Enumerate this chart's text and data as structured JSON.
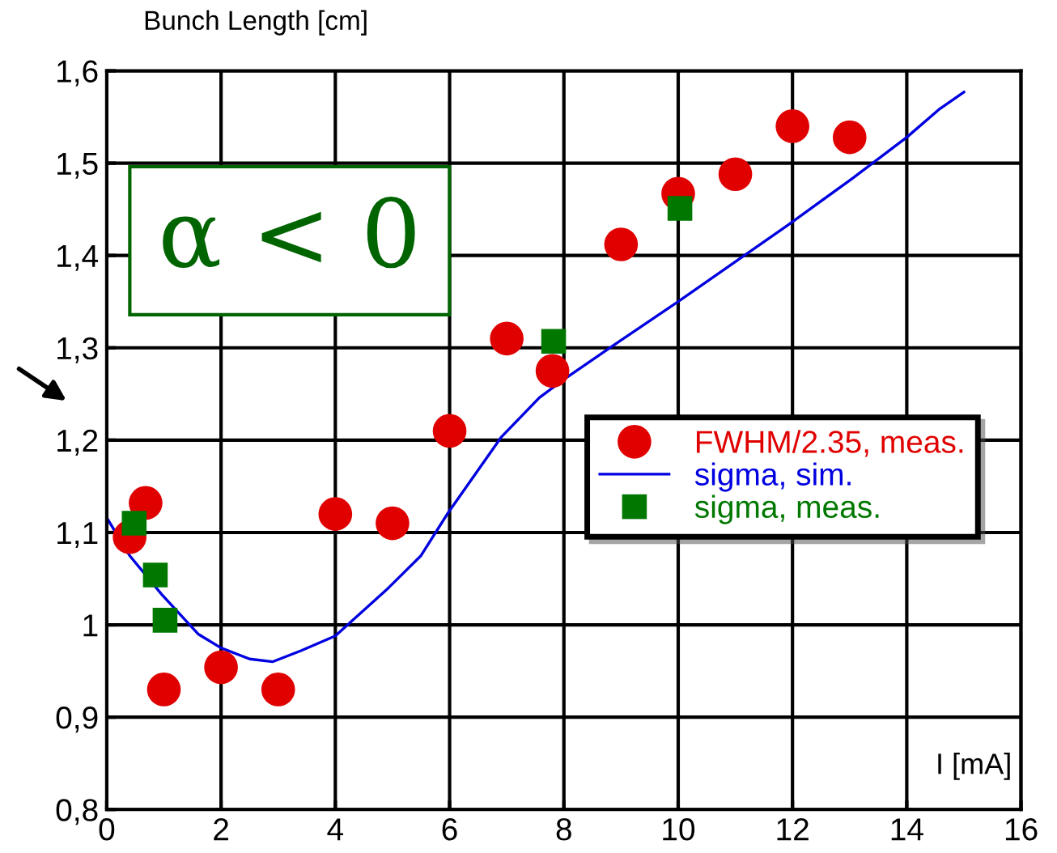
{
  "chart_data": {
    "type": "scatter",
    "ylabel": "Bunch Length [cm]",
    "xlabel": "I [mA]",
    "annotations": [
      "α < 0"
    ],
    "xlim": [
      0,
      16
    ],
    "xticks": [
      0,
      2,
      4,
      6,
      8,
      10,
      12,
      14,
      16
    ],
    "ylim": [
      0.8,
      1.6
    ],
    "yticks": [
      {
        "value": 0.8,
        "label": "0,8"
      },
      {
        "value": 0.9,
        "label": "0,9"
      },
      {
        "value": 1.0,
        "label": "1"
      },
      {
        "value": 1.1,
        "label": "1,1"
      },
      {
        "value": 1.2,
        "label": "1,2"
      },
      {
        "value": 1.3,
        "label": "1,3"
      },
      {
        "value": 1.4,
        "label": "1,4"
      },
      {
        "value": 1.5,
        "label": "1,5"
      },
      {
        "value": 1.6,
        "label": "1,6"
      }
    ],
    "grid": true,
    "legend": "right",
    "series": [
      {
        "name": "FWHM/2.35, meas.",
        "type": "scatter",
        "marker": "circle",
        "color": "#e00000",
        "x": [
          0.4,
          0.68,
          1.0,
          2.0,
          3.0,
          4.0,
          5.0,
          6.0,
          7.0,
          7.8,
          9.0,
          10.0,
          11.0,
          12.0,
          13.0
        ],
        "values": [
          1.095,
          1.132,
          0.93,
          0.954,
          0.93,
          1.12,
          1.11,
          1.21,
          1.31,
          1.275,
          1.412,
          1.467,
          1.488,
          1.54,
          1.528
        ]
      },
      {
        "name": "sigma, sim.",
        "type": "line",
        "marker": "none",
        "line_style": "solid",
        "color": "#0000e0",
        "x": [
          0,
          0.4,
          0.96,
          1.6,
          2.0,
          2.5,
          2.9,
          3.4,
          4.0,
          4.93,
          5.5,
          5.97,
          6.9,
          7.57,
          8.05,
          8.9,
          10.0,
          10.97,
          11.9,
          13.06,
          14.0,
          14.56,
          15.0
        ],
        "values": [
          1.116,
          1.075,
          1.033,
          0.99,
          0.975,
          0.963,
          0.96,
          0.972,
          0.988,
          1.04,
          1.075,
          1.121,
          1.203,
          1.246,
          1.268,
          1.304,
          1.35,
          1.392,
          1.432,
          1.484,
          1.528,
          1.558,
          1.577
        ]
      },
      {
        "name": "sigma, meas.",
        "type": "scatter",
        "marker": "square",
        "color": "#007800",
        "x": [
          0.48,
          0.85,
          1.02,
          7.82,
          10.03
        ],
        "values": [
          1.11,
          1.054,
          1.005,
          1.307,
          1.451
        ]
      }
    ]
  }
}
